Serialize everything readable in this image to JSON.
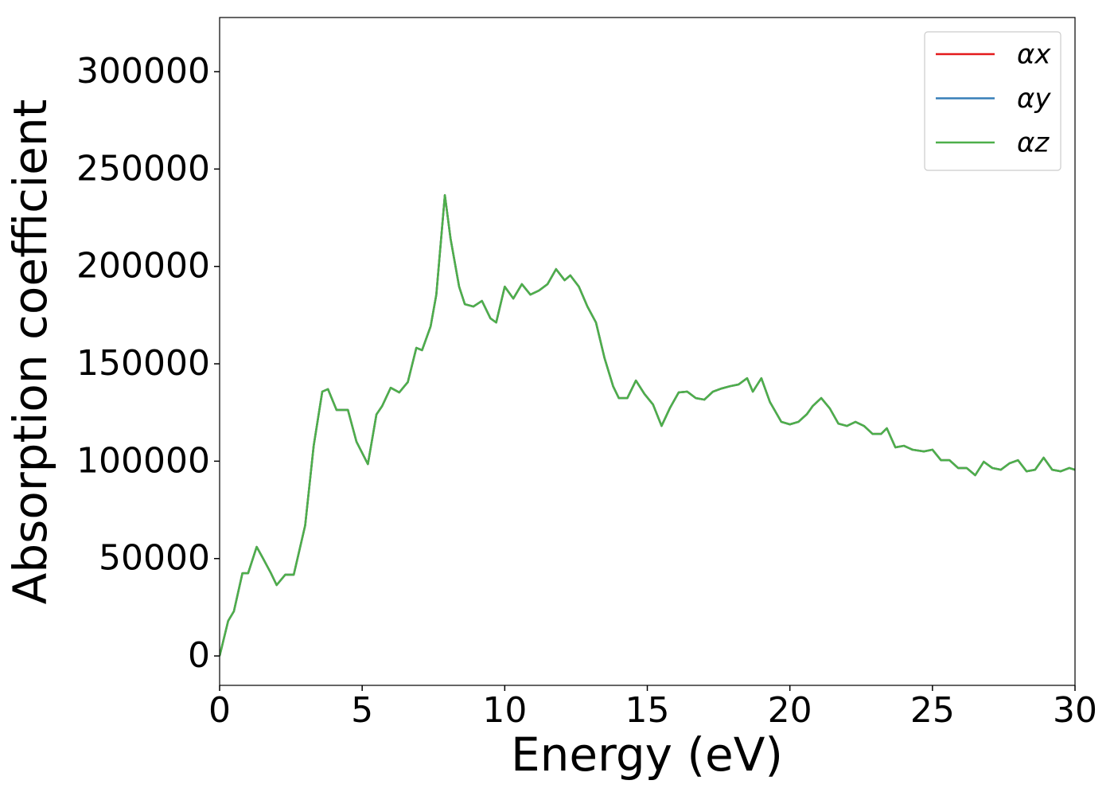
{
  "chart_data": {
    "type": "line",
    "xlabel": "Energy (eV)",
    "ylabel": "Absorption coefficient",
    "x": [
      0,
      0.3,
      0.5,
      0.8,
      1.0,
      1.3,
      1.5,
      1.8,
      2.0,
      2.3,
      2.6,
      3.0,
      3.3,
      3.6,
      3.8,
      4.1,
      4.5,
      4.8,
      5.2,
      5.5,
      5.7,
      6.0,
      6.3,
      6.6,
      6.9,
      7.1,
      7.4,
      7.6,
      7.9,
      8.1,
      8.4,
      8.6,
      8.9,
      9.2,
      9.5,
      9.7,
      10.0,
      10.3,
      10.6,
      10.9,
      11.2,
      11.5,
      11.8,
      12.1,
      12.3,
      12.6,
      12.9,
      13.2,
      13.5,
      13.8,
      14.0,
      14.3,
      14.6,
      14.9,
      15.2,
      15.5,
      15.8,
      16.1,
      16.4,
      16.7,
      17.0,
      17.3,
      17.6,
      17.9,
      18.2,
      18.5,
      18.7,
      19.0,
      19.3,
      19.7,
      20.0,
      20.3,
      20.6,
      20.8,
      21.1,
      21.4,
      21.7,
      22.0,
      22.3,
      22.6,
      22.9,
      23.2,
      23.4,
      23.7,
      24.0,
      24.3,
      24.7,
      25.0,
      25.3,
      25.6,
      25.9,
      26.2,
      26.5,
      26.8,
      27.1,
      27.4,
      27.7,
      28.0,
      28.3,
      28.6,
      28.9,
      29.2,
      29.5,
      29.8,
      30.0
    ],
    "series": [
      {
        "name": "αx",
        "color": "#e41a1c",
        "values": [
          0,
          18000,
          22900,
          42500,
          42500,
          56000,
          50700,
          42500,
          36400,
          41700,
          41700,
          67000,
          108000,
          135700,
          137000,
          126300,
          126300,
          110000,
          98500,
          124000,
          128300,
          137700,
          135300,
          140600,
          158200,
          157000,
          169200,
          185500,
          236600,
          214200,
          189600,
          180600,
          179400,
          182300,
          173300,
          171200,
          189600,
          183500,
          190900,
          185500,
          187600,
          190900,
          198600,
          192900,
          195400,
          189600,
          179400,
          171200,
          152900,
          138500,
          132400,
          132400,
          141400,
          134500,
          129100,
          118100,
          127500,
          135300,
          135700,
          132400,
          131600,
          135700,
          137300,
          138500,
          139400,
          142600,
          135700,
          142600,
          130400,
          120200,
          118900,
          120200,
          124200,
          128300,
          132400,
          127100,
          119300,
          118100,
          120200,
          118100,
          114000,
          114000,
          116900,
          107100,
          107900,
          105900,
          105000,
          105900,
          100500,
          100500,
          96500,
          96500,
          92800,
          99700,
          96500,
          95600,
          98900,
          100500,
          94800,
          95600,
          101800,
          95600,
          94800,
          96500,
          95600
        ]
      },
      {
        "name": "αy",
        "color": "#377eb8",
        "values": [
          0,
          18000,
          22900,
          42500,
          42500,
          56000,
          50700,
          42500,
          36400,
          41700,
          41700,
          67000,
          108000,
          135700,
          137000,
          126300,
          126300,
          110000,
          98500,
          124000,
          128300,
          137700,
          135300,
          140600,
          158200,
          157000,
          169200,
          185500,
          236600,
          214200,
          189600,
          180600,
          179400,
          182300,
          173300,
          171200,
          189600,
          183500,
          190900,
          185500,
          187600,
          190900,
          198600,
          192900,
          195400,
          189600,
          179400,
          171200,
          152900,
          138500,
          132400,
          132400,
          141400,
          134500,
          129100,
          118100,
          127500,
          135300,
          135700,
          132400,
          131600,
          135700,
          137300,
          138500,
          139400,
          142600,
          135700,
          142600,
          130400,
          120200,
          118900,
          120200,
          124200,
          128300,
          132400,
          127100,
          119300,
          118100,
          120200,
          118100,
          114000,
          114000,
          116900,
          107100,
          107900,
          105900,
          105000,
          105900,
          100500,
          100500,
          96500,
          96500,
          92800,
          99700,
          96500,
          95600,
          98900,
          100500,
          94800,
          95600,
          101800,
          95600,
          94800,
          96500,
          95600
        ]
      },
      {
        "name": "αz",
        "color": "#4daf4a",
        "values": [
          0,
          18000,
          22900,
          42500,
          42500,
          56000,
          50700,
          42500,
          36400,
          41700,
          41700,
          67000,
          108000,
          135700,
          137000,
          126300,
          126300,
          110000,
          98500,
          124000,
          128300,
          137700,
          135300,
          140600,
          158200,
          157000,
          169200,
          185500,
          236600,
          214200,
          189600,
          180600,
          179400,
          182300,
          173300,
          171200,
          189600,
          183500,
          190900,
          185500,
          187600,
          190900,
          198600,
          192900,
          195400,
          189600,
          179400,
          171200,
          152900,
          138500,
          132400,
          132400,
          141400,
          134500,
          129100,
          118100,
          127500,
          135300,
          135700,
          132400,
          131600,
          135700,
          137300,
          138500,
          139400,
          142600,
          135700,
          142600,
          130400,
          120200,
          118900,
          120200,
          124200,
          128300,
          132400,
          127100,
          119300,
          118100,
          120200,
          118100,
          114000,
          114000,
          116900,
          107100,
          107900,
          105900,
          105000,
          105900,
          100500,
          100500,
          96500,
          96500,
          92800,
          99700,
          96500,
          95600,
          98900,
          100500,
          94800,
          95600,
          101800,
          95600,
          94800,
          96500,
          95600
        ]
      }
    ],
    "xlim": [
      0,
      30
    ],
    "xticks": [
      0,
      5,
      10,
      15,
      20,
      25,
      30
    ],
    "ylim": [
      -15100,
      327800
    ],
    "yticks": [
      0,
      50000,
      100000,
      150000,
      200000,
      250000,
      300000
    ],
    "legend": "upper right",
    "grid": false
  }
}
